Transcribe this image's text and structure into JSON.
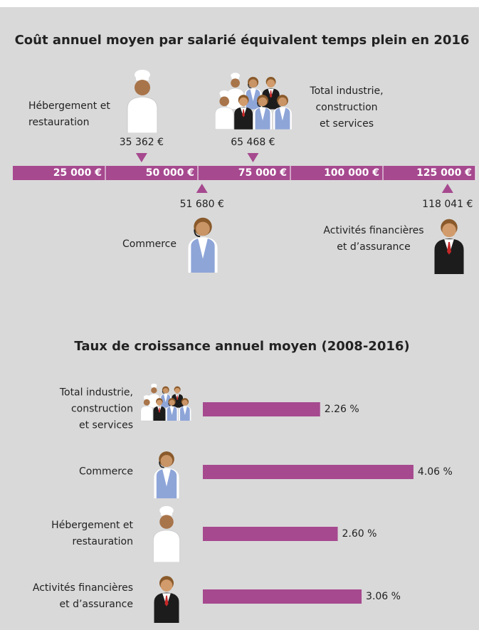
{
  "chart_data": [
    {
      "type": "number_line",
      "title": "Coût annuel moyen par salarié équivalent temps plein en 2016",
      "categories": [
        "Hébergement et\nrestauration",
        "Total industrie,\nconstruction\net services",
        "Commerce",
        "Activités financières\net d’assurance"
      ],
      "values": [
        35362,
        65468,
        51680,
        118041
      ],
      "value_labels": [
        "35 362 €",
        "65 468 €",
        "51 680 €",
        "118 041 €"
      ],
      "xlim": [
        0,
        125000
      ],
      "xticks": [
        {
          "value": 25000,
          "label": "25 000 €"
        },
        {
          "value": 50000,
          "label": "50 000 €"
        },
        {
          "value": 75000,
          "label": "75 000 €"
        },
        {
          "value": 100000,
          "label": "100 000 €"
        },
        {
          "value": 125000,
          "label": "125 000 €"
        }
      ],
      "color": "#a6498f"
    },
    {
      "type": "bar",
      "title": "Taux de croissance annuel moyen (2008-2016)",
      "categories": [
        "Total industrie,\nconstruction\net services",
        "Commerce",
        "Hébergement et\nrestauration",
        "Activités financières\net d’assurance"
      ],
      "values": [
        2.26,
        4.06,
        2.6,
        3.06
      ],
      "value_labels": [
        "2.26 %",
        "4.06 %",
        "2.60 %",
        "3.06 %"
      ],
      "xlim": [
        0,
        4.5
      ],
      "color": "#a6498f"
    }
  ]
}
